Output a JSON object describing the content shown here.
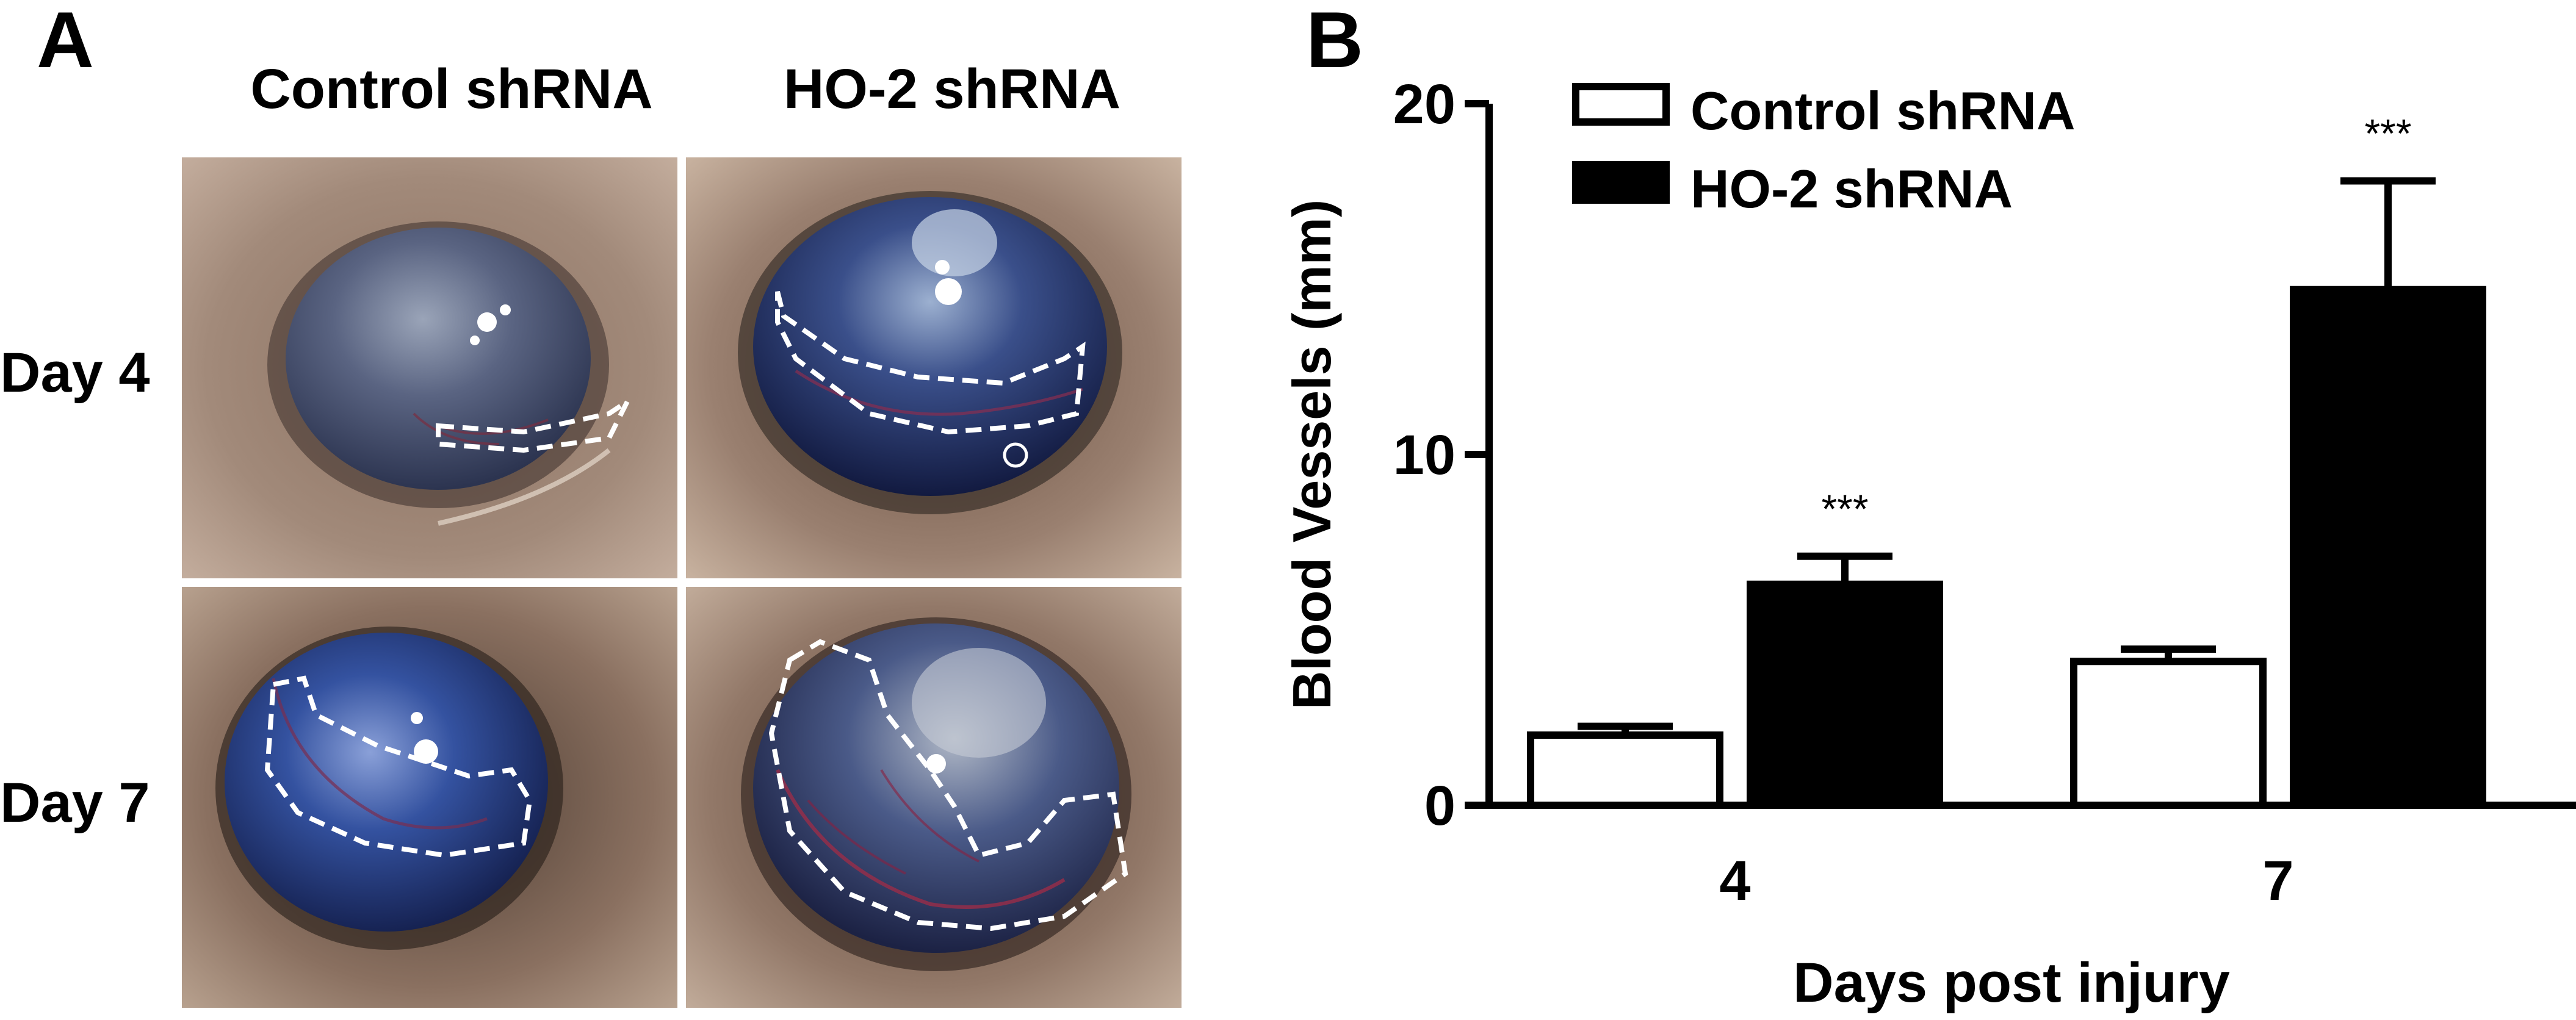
{
  "panels": {
    "a_label": "A",
    "b_label": "B"
  },
  "photo_grid": {
    "columns": [
      "Control shRNA",
      "HO-2 shRNA"
    ],
    "rows": [
      "Day 4",
      "Day 7"
    ]
  },
  "colors": {
    "control_bar_fill": "#ffffff",
    "ho2_bar_fill": "#000000",
    "outline": "#000000"
  },
  "chart_data": {
    "type": "bar",
    "xlabel": "Days post injury",
    "ylabel": "Blood Vessels (mm)",
    "categories": [
      "4",
      "7"
    ],
    "ylim": [
      0,
      20
    ],
    "yticks": [
      "0",
      "10",
      "20"
    ],
    "legend_position": "top-left",
    "series": [
      {
        "name": "Control shRNA",
        "values": [
          2.0,
          4.1
        ],
        "errors": [
          0.25,
          0.35
        ],
        "color": "#ffffff",
        "significance": [
          "",
          ""
        ]
      },
      {
        "name": "HO-2 shRNA",
        "values": [
          6.3,
          14.7
        ],
        "errors": [
          0.8,
          3.1
        ],
        "color": "#000000",
        "significance": [
          "***",
          "***"
        ]
      }
    ]
  }
}
